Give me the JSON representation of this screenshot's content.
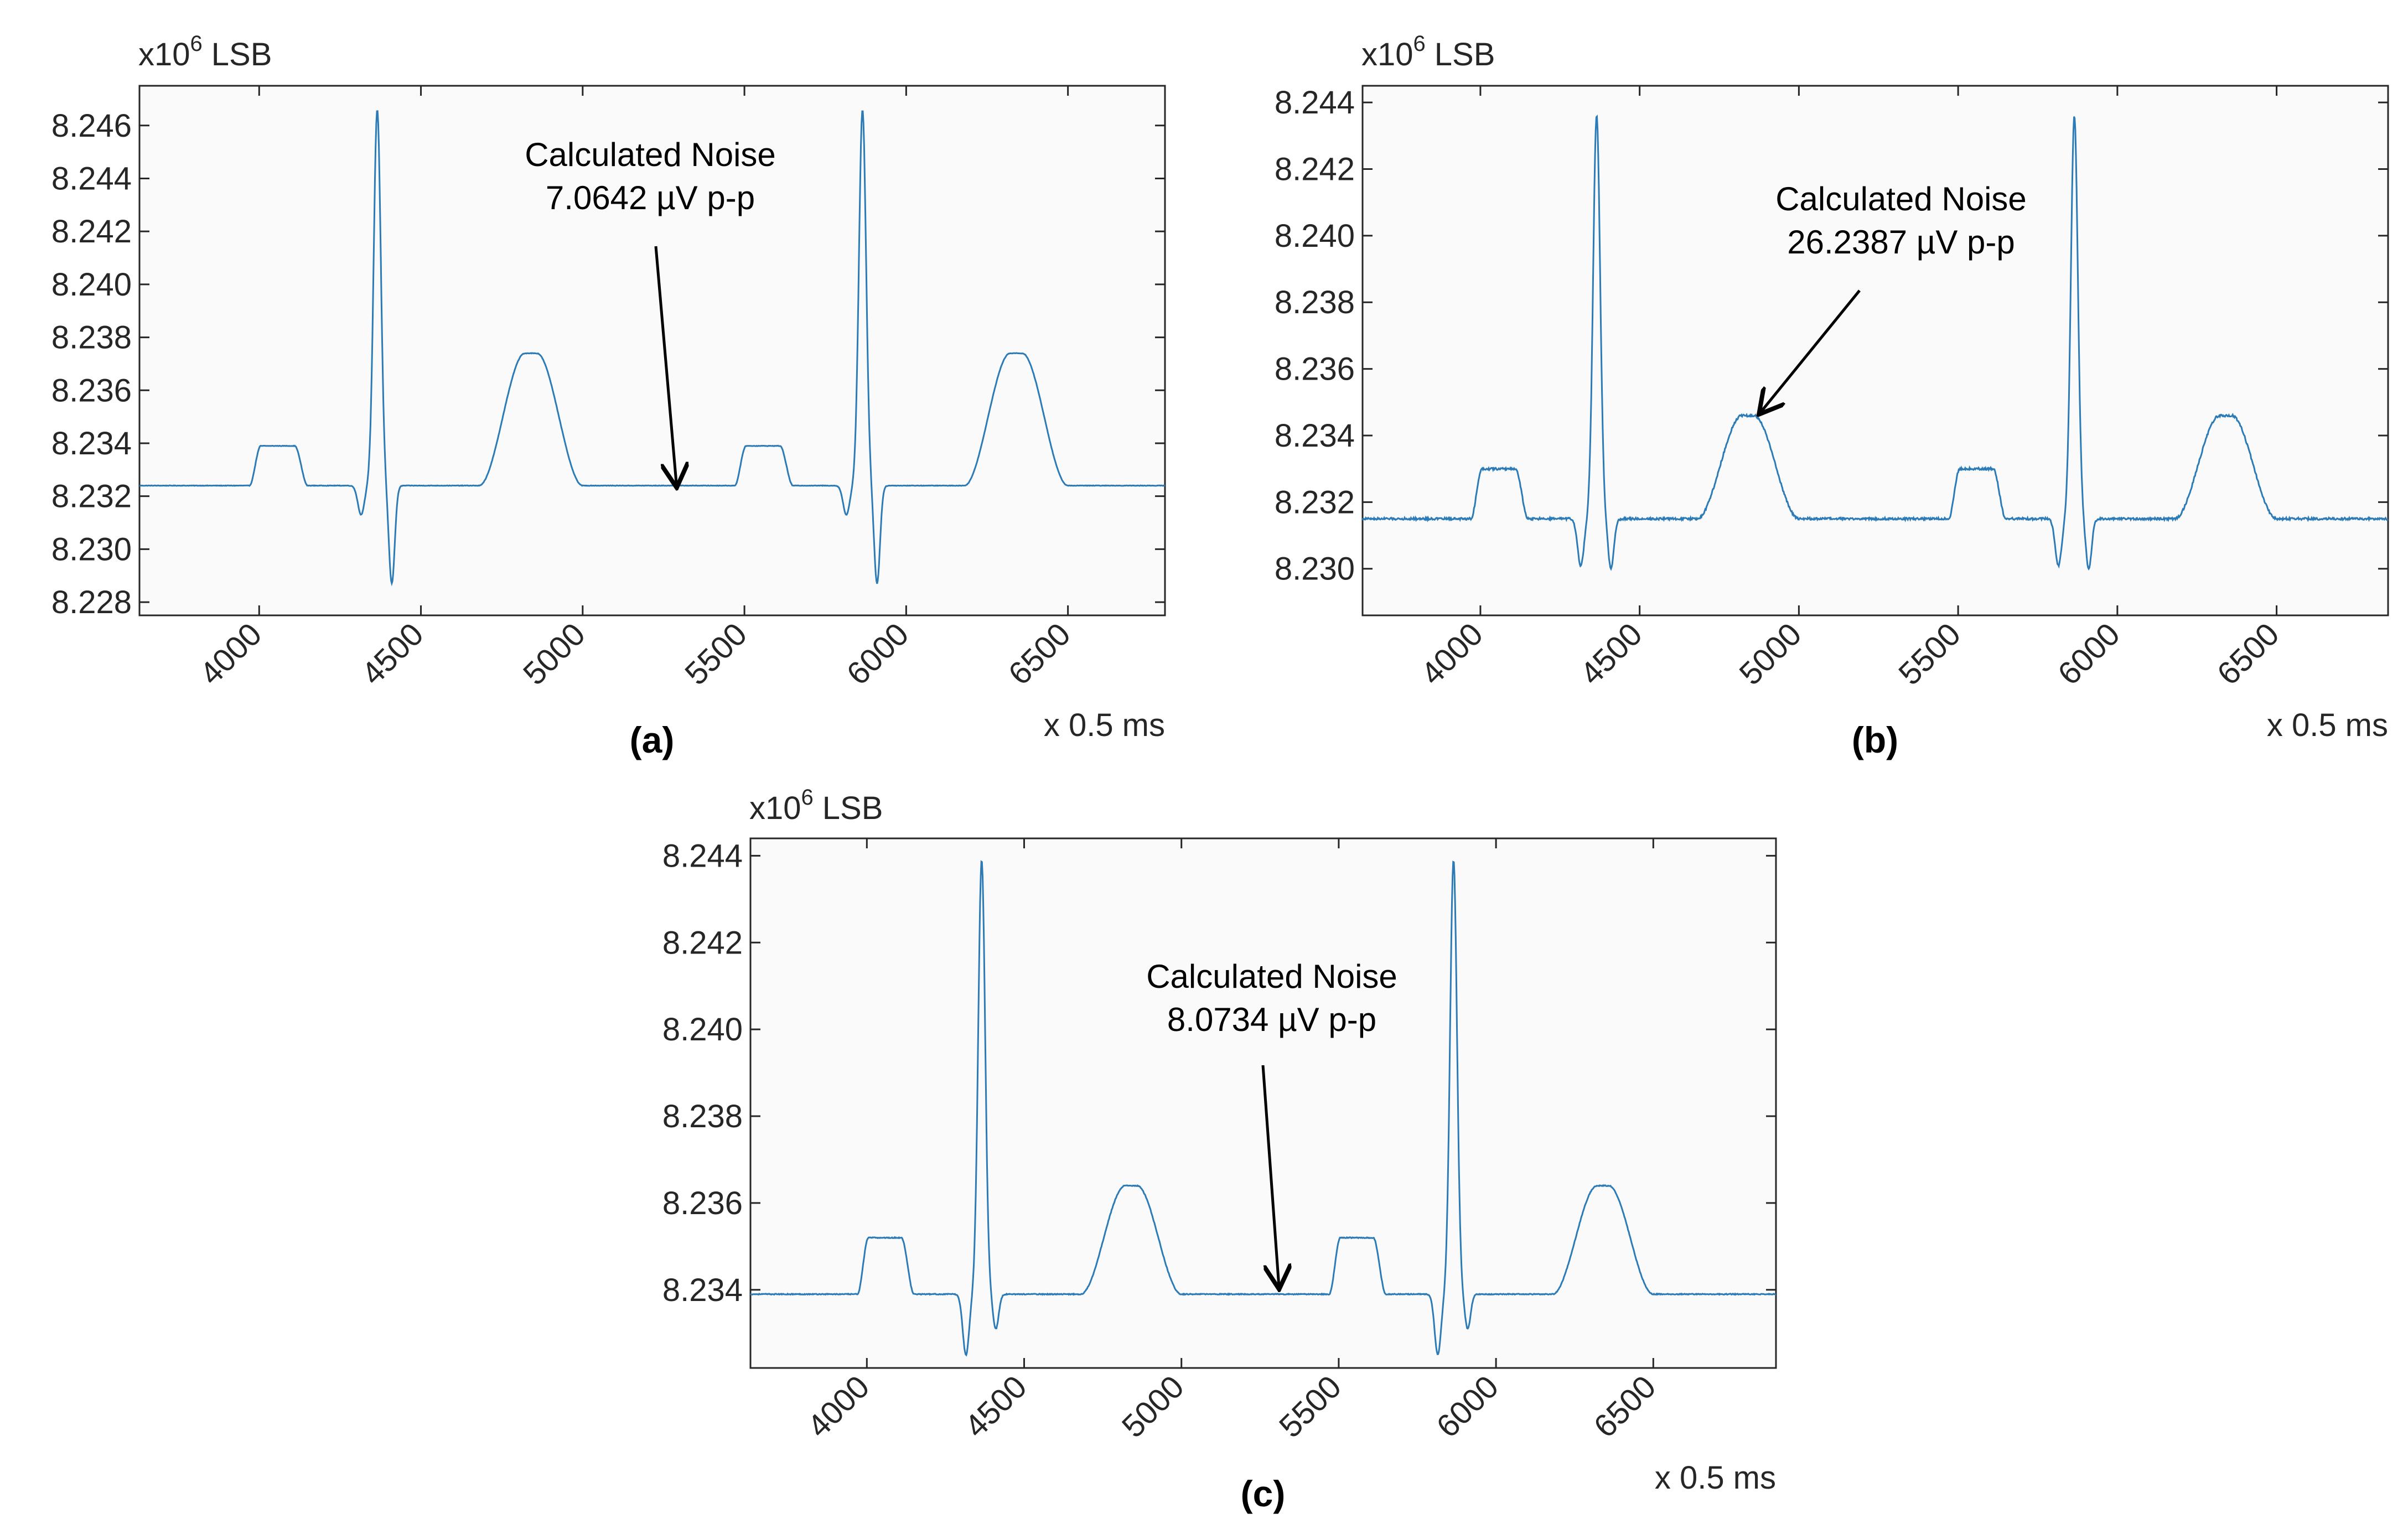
{
  "figure": {
    "line_color": "#2c7bb6",
    "axes_color": "#262626",
    "panels": [
      {
        "label": "(a)",
        "y_unit_prefix": "x10",
        "y_unit_exponent": "6",
        "y_unit_suffix": "LSB",
        "x_unit": "x 0.5 ms",
        "annotation_line1": "Calculated Noise",
        "annotation_line2": "7.0642 µV p-p"
      },
      {
        "label": "(b)",
        "y_unit_prefix": "x10",
        "y_unit_exponent": "6",
        "y_unit_suffix": "LSB",
        "x_unit": "x 0.5 ms",
        "annotation_line1": "Calculated Noise",
        "annotation_line2": "26.2387 µV p-p"
      },
      {
        "label": "(c)",
        "y_unit_prefix": "x10",
        "y_unit_exponent": "6",
        "y_unit_suffix": "LSB",
        "x_unit": "x 0.5 ms",
        "annotation_line1": "Calculated Noise",
        "annotation_line2": "8.0734 µV p-p"
      }
    ]
  },
  "chart_data": [
    {
      "type": "line",
      "title": "",
      "xlabel": "x 0.5 ms",
      "ylabel": "x10^6 LSB",
      "xlim": [
        3630,
        6800
      ],
      "ylim": [
        8.2275,
        8.2475
      ],
      "xticks": [
        "4000",
        "4500",
        "5000",
        "5500",
        "6000",
        "6500"
      ],
      "yticks": [
        "8.228",
        "8.230",
        "8.232",
        "8.234",
        "8.236",
        "8.238",
        "8.240",
        "8.242",
        "8.244",
        "8.246"
      ],
      "annotation": {
        "text": [
          "Calculated Noise",
          "7.0642 µV p-p"
        ],
        "points_to": [
          5290,
          8.2323
        ]
      },
      "noise_uv_pp": 7.0642,
      "baseline": 8.2324,
      "p_wave_peak": 8.2339,
      "q_wave_min": 8.2313,
      "r_wave_peak": 8.2466,
      "s_wave_min": 8.2287,
      "t_wave_peak": 8.2374,
      "beat_starts": [
        3960,
        5460
      ]
    },
    {
      "type": "line",
      "title": "",
      "xlabel": "x 0.5 ms",
      "ylabel": "x10^6 LSB",
      "xlim": [
        3630,
        6850
      ],
      "ylim": [
        8.2286,
        8.2445
      ],
      "xticks": [
        "4000",
        "4500",
        "5000",
        "5500",
        "6000",
        "6500"
      ],
      "yticks": [
        "8.230",
        "8.232",
        "8.234",
        "8.236",
        "8.238",
        "8.240",
        "8.242",
        "8.244"
      ],
      "annotation": {
        "text": [
          "Calculated Noise",
          "26.2387 µV p-p"
        ],
        "points_to": [
          4880,
          8.2346
        ]
      },
      "noise_uv_pp": 26.2387,
      "baseline": 8.2315,
      "p_wave_peak": 8.233,
      "q_wave_min": 8.2301,
      "r_wave_peak": 8.2436,
      "s_wave_min": 8.23,
      "t_wave_peak": 8.2346,
      "beat_starts": [
        3960,
        5460
      ]
    },
    {
      "type": "line",
      "title": "",
      "xlabel": "x 0.5 ms",
      "ylabel": "x10^6 LSB",
      "xlim": [
        3630,
        6890
      ],
      "ylim": [
        8.2322,
        8.2444
      ],
      "xticks": [
        "4000",
        "4500",
        "5000",
        "5500",
        "6000",
        "6500"
      ],
      "yticks": [
        "8.234",
        "8.236",
        "8.238",
        "8.240",
        "8.242",
        "8.244"
      ],
      "annotation": {
        "text": [
          "Calculated Noise",
          "8.0734 µV p-p"
        ],
        "points_to": [
          5310,
          8.234
        ]
      },
      "noise_uv_pp": 8.0734,
      "baseline": 8.2339,
      "p_wave_peak": 8.2352,
      "q_wave_min": 8.2325,
      "r_wave_peak": 8.2439,
      "s_wave_min": 8.2331,
      "t_wave_peak": 8.2364,
      "beat_starts": [
        3960,
        5460
      ]
    }
  ]
}
